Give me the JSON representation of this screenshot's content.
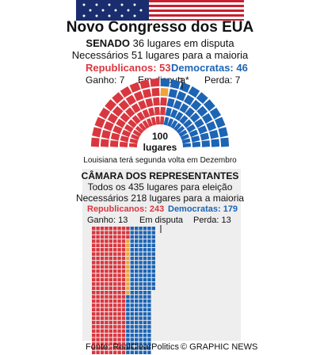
{
  "title": "Novo Congresso dos EUA",
  "senate": {
    "heading": "SENADO",
    "line1_rest": "36 lugares em disputa",
    "line2": "Necessários 51 lugares para a maioria",
    "rep_label": "Republicanos: 53",
    "dem_label": "Democratas: 46",
    "gain_label": "Ganho: 7",
    "dispute_label": "Em disputa*",
    "loss_label": "Perda: 7",
    "center_number": "100",
    "center_unit": "lugares",
    "footnote": "Louisiana terá segunda volta em Dezembro"
  },
  "house": {
    "heading": "CÂMARA DOS REPRESENTANTES",
    "line1": "Todos os 435 lugares para eleição",
    "line2": "Necessários 218 lugares para a maioria",
    "rep_label": "Republicanos: 243",
    "dem_label": "Democratas: 179",
    "gain_label": "Ganho: 13",
    "dispute_label": "Em disputa",
    "loss_label": "Perda: 13"
  },
  "source": "Fonte: RealClearPolitics",
  "credit": "© GRAPHIC NEWS",
  "colors": {
    "republican": "#d9373f",
    "democrat": "#1d64b4",
    "disputed": "#f2a23b",
    "banner": "#1a2d6e"
  },
  "chart_data": [
    {
      "type": "parliament",
      "title": "SENADO",
      "total": 100,
      "majority": 51,
      "seats_contested": 36,
      "series": [
        {
          "name": "Republicanos",
          "value": 53,
          "color": "#d9373f"
        },
        {
          "name": "Em disputa",
          "value": 1,
          "color": "#f2a23b"
        },
        {
          "name": "Democratas",
          "value": 46,
          "color": "#1d64b4"
        }
      ],
      "gained": 7,
      "lost": 7
    },
    {
      "type": "waffle",
      "title": "CÂMARA DOS REPRESENTANTES",
      "total": 435,
      "majority": 218,
      "series": [
        {
          "name": "Republicanos",
          "value": 243,
          "color": "#d9373f"
        },
        {
          "name": "Em disputa",
          "value": 13,
          "color": "#f2a23b"
        },
        {
          "name": "Democratas",
          "value": 179,
          "color": "#1d64b4"
        }
      ],
      "gained": 13,
      "lost": 13
    }
  ]
}
